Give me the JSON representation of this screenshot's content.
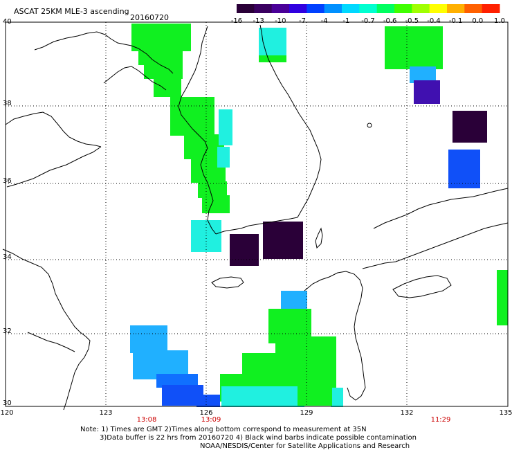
{
  "header": {
    "title": "ASCAT 25KM MLE-3 ascending",
    "date": "20160720"
  },
  "colorbar": {
    "labels": [
      "-16",
      "-13",
      "-10",
      "-7",
      "-4",
      "-1",
      "-0.7",
      "-0.6",
      "-0.5",
      "-0.4",
      "-0.1",
      "0.0",
      "1.0"
    ],
    "colors": [
      "#2a0038",
      "#3a0060",
      "#4a0098",
      "#3000e0",
      "#0040ff",
      "#0090ff",
      "#00d8ff",
      "#00ffd0",
      "#00ff60",
      "#40ff00",
      "#a0ff00",
      "#ffff00",
      "#ffb000",
      "#ff6000",
      "#ff2000"
    ]
  },
  "axes": {
    "lat_labels": [
      "40",
      "38",
      "36",
      "34",
      "32",
      "30"
    ],
    "lon_labels": [
      "120",
      "123",
      "126",
      "129",
      "132",
      "135"
    ]
  },
  "times": [
    "13:08",
    "13:09",
    "11:29"
  ],
  "notes": [
    "Note: 1) Times are GMT 2)Times along bottom correspond to measurement at 35N",
    "3)Data buffer is 22 hrs from 20160720 4) Black wind barbs indicate possible contamination",
    "NOAA/NESDIS/Center for Satellite Applications and Research"
  ],
  "palette": {
    "green": "#10f020",
    "cyan": "#20f0e0",
    "dark_purple": "#2a0038",
    "indigo": "#4010b0",
    "blue": "#1050f8",
    "light_blue": "#20b0ff",
    "mid_blue": "#1070ff"
  }
}
